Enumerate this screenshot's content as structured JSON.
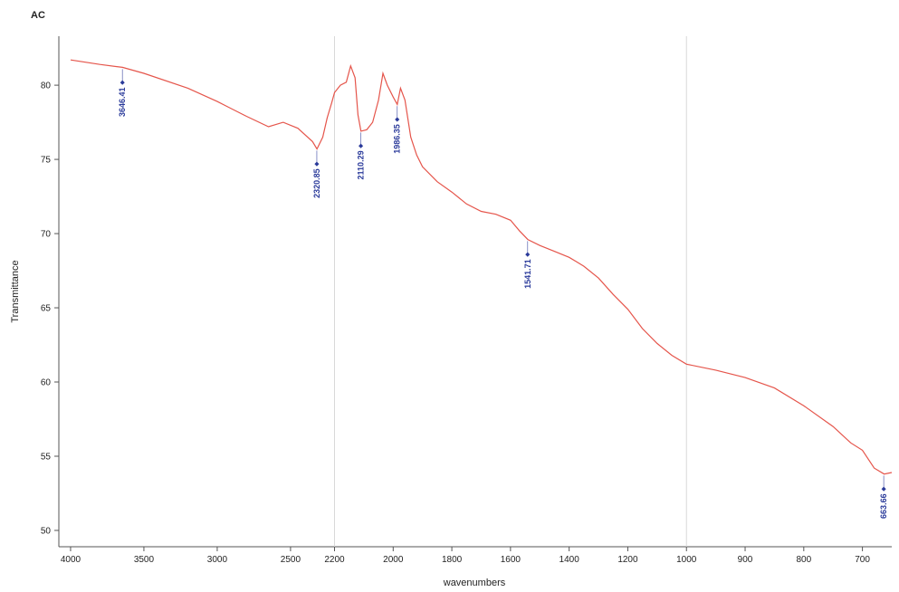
{
  "chart_data": {
    "type": "line",
    "title": "AC",
    "xlabel": "wavenumbers",
    "ylabel": "Transmittance",
    "xlim": [
      4080,
      650
    ],
    "ylim": [
      48.9,
      83.3
    ],
    "x_breaks": [
      2200,
      1000
    ],
    "xticks": [
      4000,
      3500,
      3000,
      2500,
      2200,
      2000,
      1800,
      1600,
      1400,
      1200,
      1000,
      900,
      800,
      700
    ],
    "yticks": [
      50,
      55,
      60,
      65,
      70,
      75,
      80
    ],
    "series": [
      {
        "name": "AC",
        "color": "#e5554b",
        "x": [
          4000,
          3800,
          3646,
          3500,
          3200,
          3000,
          2800,
          2650,
          2550,
          2450,
          2350,
          2320,
          2280,
          2250,
          2220,
          2200,
          2180,
          2160,
          2145,
          2130,
          2120,
          2110,
          2090,
          2070,
          2050,
          2035,
          2020,
          2000,
          1986,
          1975,
          1960,
          1940,
          1920,
          1900,
          1850,
          1800,
          1750,
          1700,
          1650,
          1600,
          1570,
          1541,
          1500,
          1450,
          1400,
          1350,
          1300,
          1250,
          1200,
          1150,
          1100,
          1050,
          1000,
          950,
          900,
          850,
          800,
          750,
          720,
          700,
          680,
          663,
          650
        ],
        "values": [
          81.7,
          81.4,
          81.2,
          80.8,
          79.8,
          78.9,
          77.9,
          77.2,
          77.5,
          77.1,
          76.2,
          75.7,
          76.5,
          77.8,
          78.8,
          79.5,
          80.0,
          80.2,
          81.3,
          80.5,
          78.0,
          76.9,
          77.0,
          77.5,
          79.0,
          80.8,
          80.0,
          79.2,
          78.7,
          79.8,
          79.0,
          76.5,
          75.3,
          74.5,
          73.5,
          72.8,
          72.0,
          71.5,
          71.3,
          70.9,
          70.2,
          69.6,
          69.2,
          68.8,
          68.4,
          67.8,
          67.0,
          65.9,
          64.9,
          63.6,
          62.6,
          61.8,
          61.2,
          60.8,
          60.3,
          59.6,
          58.4,
          57.0,
          55.9,
          55.4,
          54.2,
          53.8,
          53.9
        ]
      }
    ],
    "peaks": [
      3646.41,
      2320.85,
      2110.29,
      1986.35,
      1541.71,
      663.66
    ]
  }
}
